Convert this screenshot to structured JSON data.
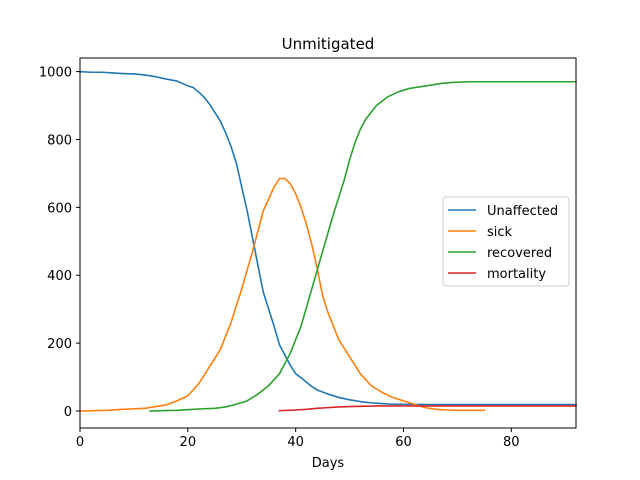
{
  "chart_data": {
    "type": "line",
    "title": "Unmitigated",
    "xlabel": "Days",
    "ylabel": "",
    "xlim": [
      0,
      92
    ],
    "ylim": [
      -50,
      1040
    ],
    "xticks": [
      0,
      20,
      40,
      60,
      80
    ],
    "yticks": [
      0,
      200,
      400,
      600,
      800,
      1000
    ],
    "grid": false,
    "legend_position": "center-right",
    "series": [
      {
        "name": "Unaffected",
        "color": "#1f77b4",
        "x": [
          0,
          2,
          4,
          6,
          8,
          10,
          12,
          14,
          16,
          18,
          20,
          21,
          22,
          23,
          24,
          25,
          26,
          27,
          28,
          29,
          30,
          31,
          32,
          33,
          34,
          35,
          36,
          37,
          38,
          39,
          40,
          41,
          42,
          43,
          44,
          46,
          48,
          50,
          52,
          54,
          56,
          58,
          60,
          65,
          70,
          80,
          92
        ],
        "y": [
          1000,
          998,
          998,
          996,
          994,
          993,
          990,
          985,
          978,
          972,
          958,
          953,
          940,
          925,
          905,
          880,
          855,
          820,
          780,
          730,
          660,
          590,
          510,
          430,
          350,
          300,
          250,
          195,
          165,
          135,
          110,
          98,
          85,
          72,
          62,
          50,
          40,
          33,
          28,
          24,
          22,
          20,
          20,
          19,
          19,
          19,
          19
        ]
      },
      {
        "name": "sick",
        "color": "#ff7f0e",
        "x": [
          0,
          5,
          8,
          12,
          16,
          18,
          20,
          22,
          24,
          26,
          28,
          30,
          32,
          33,
          34,
          35,
          36,
          37,
          38,
          39,
          40,
          41,
          42,
          43,
          44,
          45,
          46,
          47,
          48,
          50,
          52,
          54,
          56,
          58,
          60,
          62,
          64,
          66,
          68,
          70,
          75
        ],
        "y": [
          0,
          2,
          5,
          8,
          18,
          30,
          45,
          80,
          130,
          180,
          260,
          360,
          470,
          530,
          590,
          625,
          660,
          685,
          685,
          670,
          640,
          600,
          550,
          490,
          420,
          340,
          290,
          250,
          210,
          160,
          110,
          75,
          55,
          40,
          30,
          20,
          10,
          5,
          3,
          2,
          2
        ]
      },
      {
        "name": "recovered",
        "color": "#2ca02c",
        "x": [
          13,
          15,
          18,
          20,
          22,
          25,
          27,
          29,
          31,
          33,
          35,
          37,
          39,
          41,
          43,
          45,
          47,
          49,
          50,
          51,
          52,
          53,
          55,
          57,
          59,
          61,
          63,
          65,
          67,
          69,
          72,
          80,
          92
        ],
        "y": [
          0,
          1,
          2,
          4,
          6,
          8,
          12,
          20,
          30,
          50,
          75,
          110,
          170,
          250,
          360,
          470,
          580,
          680,
          740,
          790,
          830,
          860,
          900,
          925,
          940,
          950,
          955,
          960,
          965,
          968,
          970,
          970,
          970
        ]
      },
      {
        "name": "mortality",
        "color": "#d62728",
        "x": [
          37,
          40,
          42,
          44,
          46,
          48,
          50,
          52,
          55,
          60,
          70,
          80,
          92
        ],
        "y": [
          1,
          3,
          5,
          8,
          10,
          12,
          13,
          14,
          15,
          15,
          15,
          15,
          15
        ]
      }
    ]
  }
}
